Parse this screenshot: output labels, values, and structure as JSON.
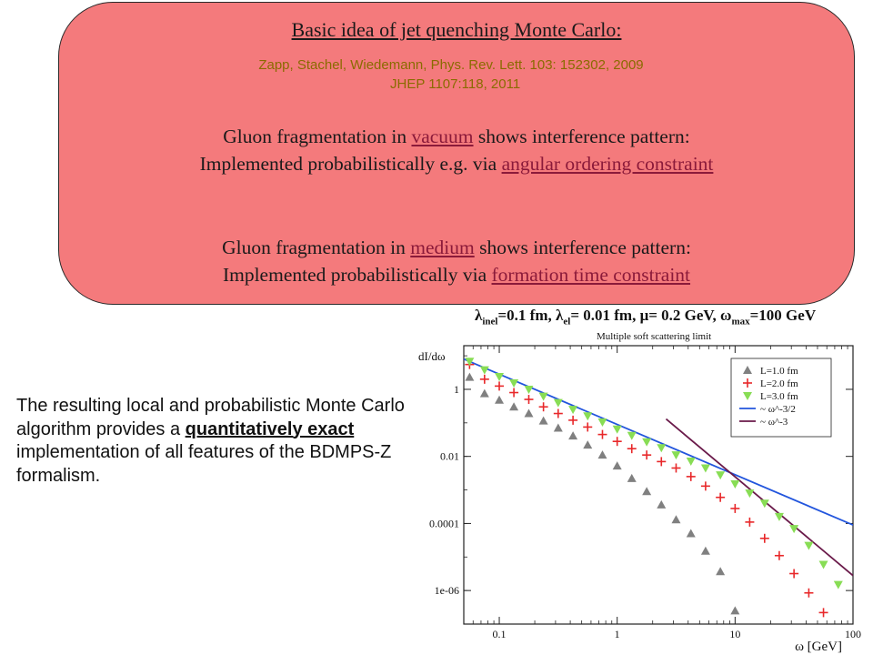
{
  "callout": {
    "title": "Basic idea of jet quenching Monte Carlo:",
    "ref_line1": "Zapp, Stachel, Wiedemann, Phys. Rev. Lett. 103: 152302, 2009",
    "ref_line2": "JHEP 1107:118, 2011",
    "vacuum_pre": "Gluon fragmentation in ",
    "vacuum_link": "vacuum",
    "vacuum_post": " shows interference pattern:",
    "vacuum_impl_pre": "Implemented probabilistically e.g. via ",
    "vacuum_impl_link": "angular ordering constraint",
    "medium_pre": "Gluon fragmentation in ",
    "medium_link": "medium",
    "medium_post": " shows interference pattern:",
    "medium_impl_pre": "Implemented probabilistically via ",
    "medium_impl_link": "formation time constraint"
  },
  "body": {
    "part1": "The resulting local and probabilistic Monte Carlo algorithm provides a ",
    "bold": "quantitatively exact",
    "part2": " implementation of all features of the BDMPS-Z formalism."
  },
  "chart_header": {
    "lambda": "λ",
    "inel": "inel",
    "mid": "=0.1 fm, λ",
    "el": "el",
    "rest1": "= 0.01 fm, μ= 0.2 GeV, ω",
    "max": "max",
    "rest2": "=100 GeV",
    "subtitle": "Multiple soft scattering limit"
  },
  "chart_data": {
    "type": "scatter",
    "xscale": "log",
    "yscale": "log",
    "xlim": [
      0.05,
      100
    ],
    "ylim": [
      1e-07,
      20
    ],
    "xlabel": "ω [GeV]",
    "ylabel": "dI/dω",
    "xticks": [
      0.1,
      1,
      10,
      100
    ],
    "xtick_labels": [
      "0.1",
      "1",
      "10",
      "100"
    ],
    "yticks": [
      1,
      0.01,
      0.0001,
      1e-06
    ],
    "ytick_labels": [
      "1",
      "0.01",
      "0.0001",
      "1e-06"
    ],
    "legend_position": "top-right",
    "series": [
      {
        "name": "L=1.0 fm",
        "marker": "triangle-up",
        "color": "#808080",
        "x": [
          0.056,
          0.075,
          0.1,
          0.133,
          0.178,
          0.237,
          0.316,
          0.422,
          0.562,
          0.75,
          1.0,
          1.33,
          1.78,
          2.37,
          3.16,
          4.22,
          5.62,
          7.5,
          10.0
        ],
        "y": [
          2.3,
          0.75,
          0.48,
          0.3,
          0.19,
          0.115,
          0.07,
          0.041,
          0.022,
          0.011,
          0.0052,
          0.0022,
          0.0009,
          0.00036,
          0.00013,
          5e-05,
          1.5e-05,
          3.7e-06,
          2.5e-07
        ]
      },
      {
        "name": "L=2.0 fm",
        "marker": "plus",
        "color": "#e8282a",
        "x": [
          0.056,
          0.075,
          0.1,
          0.133,
          0.178,
          0.237,
          0.316,
          0.422,
          0.562,
          0.75,
          1.0,
          1.33,
          1.78,
          2.37,
          3.16,
          4.22,
          5.62,
          7.5,
          10.0,
          13.3,
          17.8,
          23.7,
          31.6,
          42.2,
          56.2
        ],
        "y": [
          5.5,
          2.0,
          1.25,
          0.8,
          0.5,
          0.3,
          0.19,
          0.12,
          0.075,
          0.045,
          0.028,
          0.017,
          0.011,
          0.007,
          0.0045,
          0.0025,
          0.0013,
          0.0006,
          0.00028,
          0.00011,
          3.6e-05,
          1.1e-05,
          3.2e-06,
          8.5e-07,
          2.2e-07
        ]
      },
      {
        "name": "L=3.0 fm",
        "marker": "triangle-down",
        "color": "#88dd55",
        "x": [
          0.056,
          0.075,
          0.1,
          0.133,
          0.178,
          0.237,
          0.316,
          0.422,
          0.562,
          0.75,
          1.0,
          1.33,
          1.78,
          2.37,
          3.16,
          4.22,
          5.62,
          7.5,
          10.0,
          13.3,
          17.8,
          23.7,
          31.6,
          42.2,
          56.2,
          75.0
        ],
        "y": [
          6.8,
          3.8,
          2.4,
          1.55,
          1.0,
          0.62,
          0.4,
          0.25,
          0.16,
          0.105,
          0.065,
          0.042,
          0.027,
          0.018,
          0.011,
          0.0072,
          0.0045,
          0.0028,
          0.0015,
          0.0008,
          0.0004,
          0.00016,
          7e-05,
          2.2e-05,
          6e-06,
          1.5e-06
        ]
      }
    ],
    "lines": [
      {
        "name": "~ ω^-3/2",
        "color": "#2255dd",
        "x": [
          0.05,
          100
        ],
        "y": [
          8.0,
          9e-05
        ]
      },
      {
        "name": "~ ω^-3",
        "color": "#6a1a4a",
        "x": [
          2.6,
          100
        ],
        "y": [
          0.13,
          2.8e-06
        ]
      }
    ]
  }
}
